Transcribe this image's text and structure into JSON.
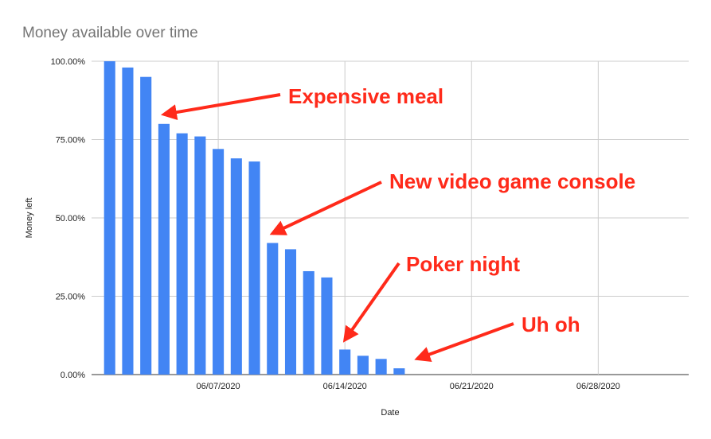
{
  "chart_data": {
    "type": "bar",
    "title": "Money available over time",
    "xlabel": "Date",
    "ylabel": "Money left",
    "x_type": "date",
    "xlim": [
      "2020-05-31",
      "2020-07-03"
    ],
    "ylim": [
      0,
      1
    ],
    "grid": true,
    "legend": "none",
    "bar_color": "#4285f4",
    "x_ticks": [
      {
        "date": "2020-06-07",
        "label": "06/07/2020"
      },
      {
        "date": "2020-06-14",
        "label": "06/14/2020"
      },
      {
        "date": "2020-06-21",
        "label": "06/21/2020"
      },
      {
        "date": "2020-06-28",
        "label": "06/28/2020"
      }
    ],
    "y_ticks": [
      {
        "value": 0,
        "label": "0.00%"
      },
      {
        "value": 0.25,
        "label": "25.00%"
      },
      {
        "value": 0.5,
        "label": "50.00%"
      },
      {
        "value": 0.75,
        "label": "75.00%"
      },
      {
        "value": 1,
        "label": "100.00%"
      }
    ],
    "points": [
      {
        "date": "2020-06-01",
        "value": 1.0
      },
      {
        "date": "2020-06-02",
        "value": 0.98
      },
      {
        "date": "2020-06-03",
        "value": 0.95
      },
      {
        "date": "2020-06-04",
        "value": 0.8
      },
      {
        "date": "2020-06-05",
        "value": 0.77
      },
      {
        "date": "2020-06-06",
        "value": 0.76
      },
      {
        "date": "2020-06-07",
        "value": 0.72
      },
      {
        "date": "2020-06-08",
        "value": 0.69
      },
      {
        "date": "2020-06-09",
        "value": 0.68
      },
      {
        "date": "2020-06-10",
        "value": 0.42
      },
      {
        "date": "2020-06-11",
        "value": 0.4
      },
      {
        "date": "2020-06-12",
        "value": 0.33
      },
      {
        "date": "2020-06-13",
        "value": 0.31
      },
      {
        "date": "2020-06-14",
        "value": 0.08
      },
      {
        "date": "2020-06-15",
        "value": 0.06
      },
      {
        "date": "2020-06-16",
        "value": 0.05
      },
      {
        "date": "2020-06-17",
        "value": 0.02
      }
    ],
    "annotations": [
      {
        "text": "Expensive meal",
        "target_date": "2020-06-04",
        "target_value": 0.8,
        "color": "#ff2a1a"
      },
      {
        "text": "New video game console",
        "target_date": "2020-06-10",
        "target_value": 0.42,
        "color": "#ff2a1a"
      },
      {
        "text": "Poker night",
        "target_date": "2020-06-14",
        "target_value": 0.08,
        "color": "#ff2a1a"
      },
      {
        "text": "Uh oh",
        "target_date": "2020-06-18",
        "target_value": 0.02,
        "color": "#ff2a1a"
      }
    ]
  }
}
